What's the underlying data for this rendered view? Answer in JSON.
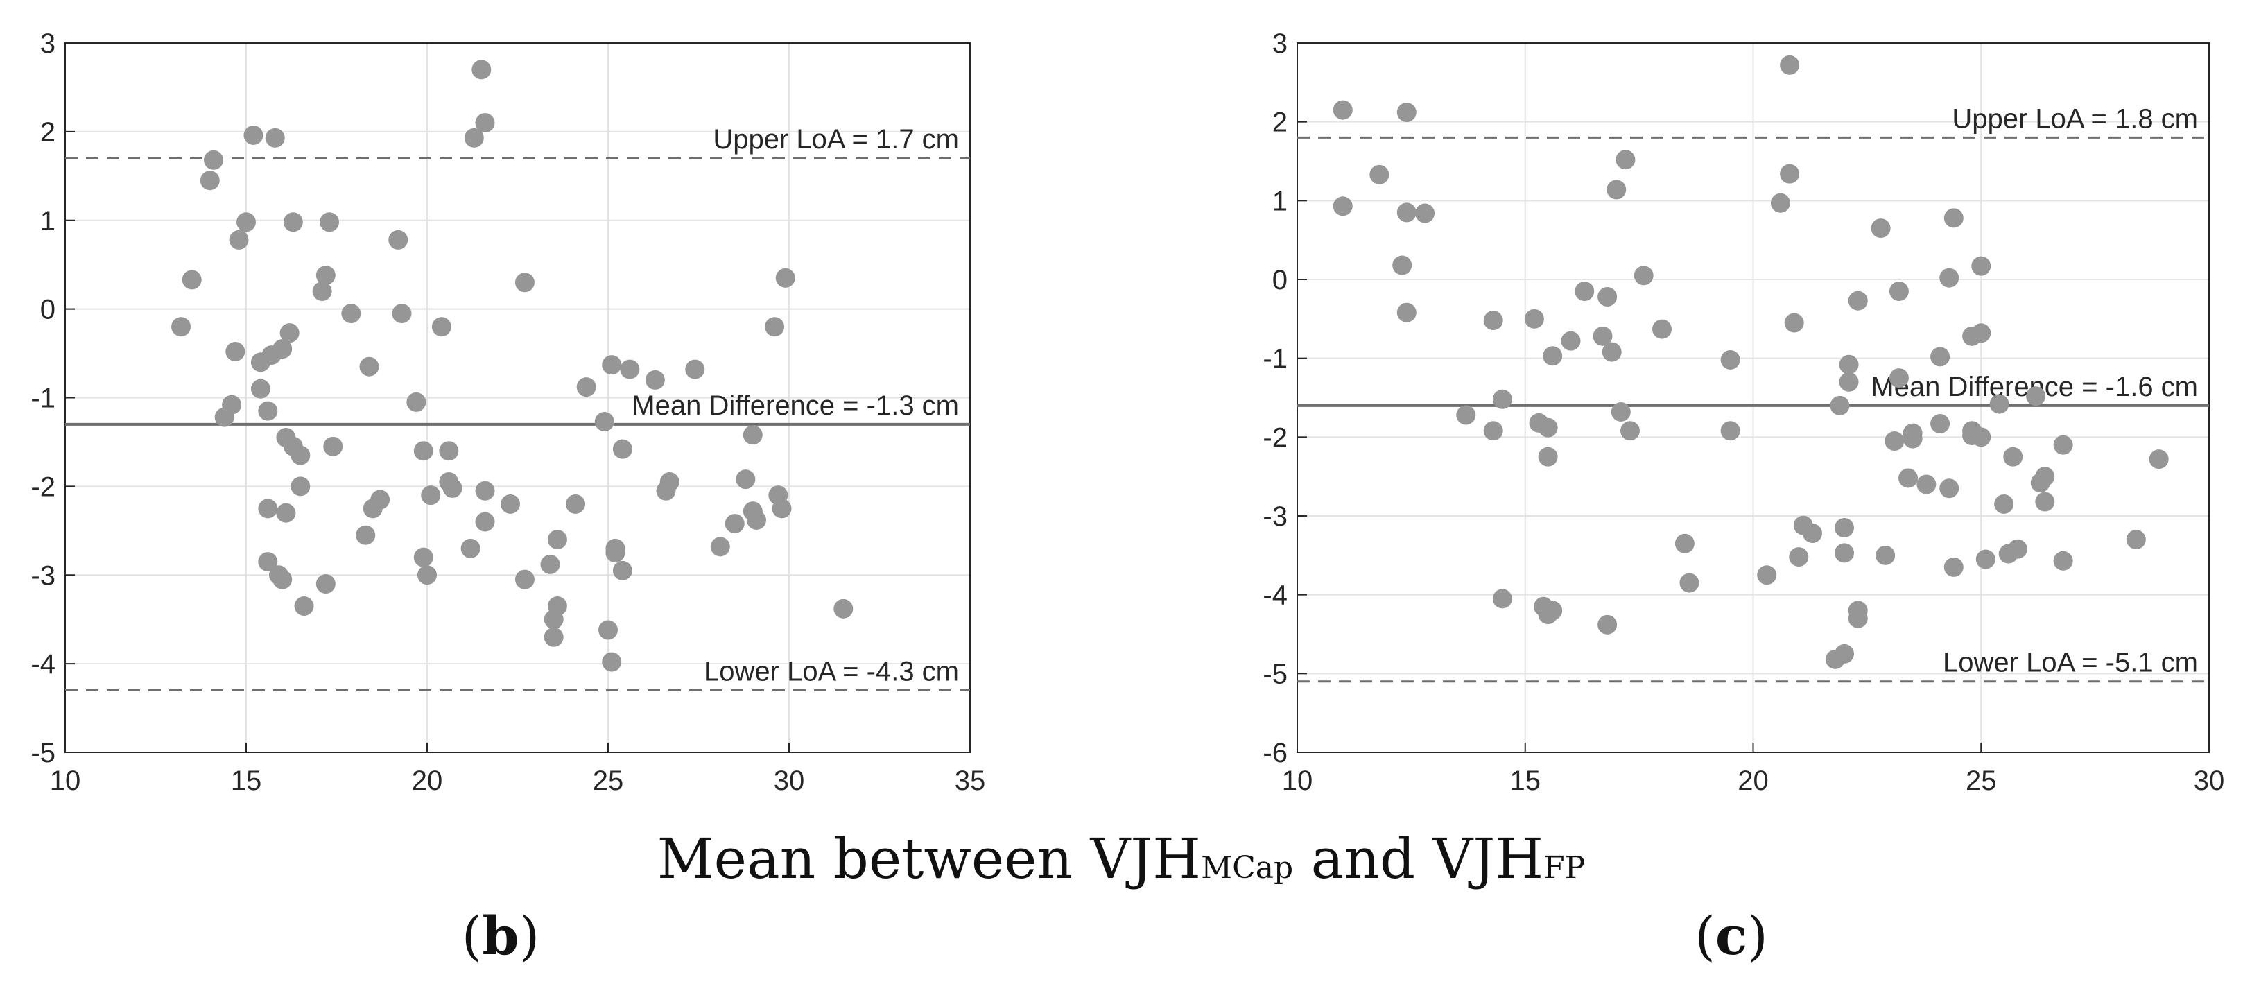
{
  "chart_data": [
    {
      "type": "scatter",
      "panel_label": "b",
      "xlim": [
        10,
        35
      ],
      "ylim": [
        -5,
        3
      ],
      "xticks": [
        10,
        15,
        20,
        25,
        30,
        35
      ],
      "yticks": [
        -5,
        -4,
        -3,
        -2,
        -1,
        0,
        1,
        2,
        3
      ],
      "grid": true,
      "point_color": "#969696",
      "reference_lines": [
        {
          "name": "upper-loa",
          "y": 1.7,
          "style": "dashed",
          "label": "Upper LoA = 1.7 cm"
        },
        {
          "name": "mean-difference",
          "y": -1.3,
          "style": "solid",
          "label": "Mean Difference = -1.3 cm"
        },
        {
          "name": "lower-loa",
          "y": -4.3,
          "style": "dashed",
          "label": "Lower LoA = -4.3 cm"
        }
      ],
      "points": [
        [
          13.2,
          -0.2
        ],
        [
          13.5,
          0.33
        ],
        [
          14.0,
          1.45
        ],
        [
          14.1,
          1.68
        ],
        [
          14.4,
          -1.22
        ],
        [
          14.6,
          -1.08
        ],
        [
          14.7,
          -0.48
        ],
        [
          14.8,
          0.78
        ],
        [
          15.0,
          0.98
        ],
        [
          15.2,
          1.96
        ],
        [
          15.4,
          -0.6
        ],
        [
          15.4,
          -0.9
        ],
        [
          15.6,
          -1.15
        ],
        [
          15.6,
          -2.25
        ],
        [
          15.6,
          -2.85
        ],
        [
          15.7,
          -0.52
        ],
        [
          15.8,
          1.93
        ],
        [
          15.9,
          -3.0
        ],
        [
          16.0,
          -0.45
        ],
        [
          16.0,
          -3.05
        ],
        [
          16.1,
          -1.45
        ],
        [
          16.1,
          -2.3
        ],
        [
          16.2,
          -0.27
        ],
        [
          16.3,
          -1.55
        ],
        [
          16.3,
          0.98
        ],
        [
          16.5,
          -2.0
        ],
        [
          16.5,
          -1.65
        ],
        [
          16.6,
          -3.35
        ],
        [
          17.1,
          0.2
        ],
        [
          17.2,
          0.38
        ],
        [
          17.2,
          -3.1
        ],
        [
          17.3,
          0.98
        ],
        [
          17.4,
          -1.55
        ],
        [
          17.9,
          -0.05
        ],
        [
          18.3,
          -2.55
        ],
        [
          18.4,
          -0.65
        ],
        [
          18.5,
          -2.25
        ],
        [
          18.7,
          -2.15
        ],
        [
          19.2,
          0.78
        ],
        [
          19.3,
          -0.05
        ],
        [
          19.7,
          -1.05
        ],
        [
          19.9,
          -1.6
        ],
        [
          19.9,
          -2.8
        ],
        [
          20.0,
          -3.0
        ],
        [
          20.1,
          -2.1
        ],
        [
          20.4,
          -0.2
        ],
        [
          20.6,
          -1.6
        ],
        [
          20.6,
          -1.95
        ],
        [
          20.7,
          -2.02
        ],
        [
          21.2,
          -2.7
        ],
        [
          21.3,
          1.93
        ],
        [
          21.5,
          2.7
        ],
        [
          21.6,
          2.1
        ],
        [
          21.6,
          -2.05
        ],
        [
          21.6,
          -2.4
        ],
        [
          22.3,
          -2.2
        ],
        [
          22.7,
          0.3
        ],
        [
          22.7,
          -3.05
        ],
        [
          23.4,
          -2.88
        ],
        [
          23.5,
          -3.5
        ],
        [
          23.5,
          -3.7
        ],
        [
          23.6,
          -3.35
        ],
        [
          23.6,
          -2.6
        ],
        [
          24.1,
          -2.2
        ],
        [
          24.4,
          -0.88
        ],
        [
          24.9,
          -1.27
        ],
        [
          25.0,
          -3.62
        ],
        [
          25.1,
          -0.63
        ],
        [
          25.1,
          -3.98
        ],
        [
          25.2,
          -2.7
        ],
        [
          25.2,
          -2.75
        ],
        [
          25.4,
          -1.58
        ],
        [
          25.4,
          -2.95
        ],
        [
          25.6,
          -0.68
        ],
        [
          26.3,
          -0.8
        ],
        [
          26.6,
          -2.05
        ],
        [
          26.7,
          -1.95
        ],
        [
          27.4,
          -0.68
        ],
        [
          28.1,
          -2.68
        ],
        [
          28.5,
          -2.42
        ],
        [
          28.8,
          -1.92
        ],
        [
          29.0,
          -1.42
        ],
        [
          29.0,
          -2.28
        ],
        [
          29.1,
          -2.38
        ],
        [
          29.6,
          -0.2
        ],
        [
          29.7,
          -2.1
        ],
        [
          29.8,
          -2.25
        ],
        [
          29.9,
          0.35
        ],
        [
          31.5,
          -3.38
        ]
      ]
    },
    {
      "type": "scatter",
      "panel_label": "c",
      "xlim": [
        10,
        30
      ],
      "ylim": [
        -6,
        3
      ],
      "xticks": [
        10,
        15,
        20,
        25,
        30
      ],
      "yticks": [
        -6,
        -5,
        -4,
        -3,
        -2,
        -1,
        0,
        1,
        2,
        3
      ],
      "grid": true,
      "point_color": "#969696",
      "reference_lines": [
        {
          "name": "upper-loa",
          "y": 1.8,
          "style": "dashed",
          "label": "Upper LoA = 1.8 cm"
        },
        {
          "name": "mean-difference",
          "y": -1.6,
          "style": "solid",
          "label": "Mean Difference = -1.6 cm"
        },
        {
          "name": "lower-loa",
          "y": -5.1,
          "style": "dashed",
          "label": "Lower LoA = -5.1 cm"
        }
      ],
      "points": [
        [
          11.0,
          2.15
        ],
        [
          11.0,
          0.93
        ],
        [
          11.8,
          1.33
        ],
        [
          12.4,
          2.12
        ],
        [
          12.4,
          0.85
        ],
        [
          12.3,
          0.18
        ],
        [
          12.4,
          -0.42
        ],
        [
          12.8,
          0.84
        ],
        [
          13.7,
          -1.72
        ],
        [
          14.3,
          -0.52
        ],
        [
          14.3,
          -1.92
        ],
        [
          14.5,
          -1.52
        ],
        [
          14.5,
          -4.05
        ],
        [
          15.2,
          -0.5
        ],
        [
          15.3,
          -1.82
        ],
        [
          15.5,
          -1.88
        ],
        [
          15.5,
          -2.25
        ],
        [
          15.6,
          -0.97
        ],
        [
          15.4,
          -4.15
        ],
        [
          15.5,
          -4.25
        ],
        [
          15.6,
          -4.2
        ],
        [
          16.0,
          -0.78
        ],
        [
          16.3,
          -0.15
        ],
        [
          16.7,
          -0.72
        ],
        [
          16.8,
          -0.22
        ],
        [
          16.8,
          -4.38
        ],
        [
          16.9,
          -0.92
        ],
        [
          17.0,
          1.14
        ],
        [
          17.1,
          -1.68
        ],
        [
          17.2,
          1.52
        ],
        [
          17.3,
          -1.92
        ],
        [
          17.6,
          0.05
        ],
        [
          18.0,
          -0.63
        ],
        [
          18.5,
          -3.35
        ],
        [
          18.6,
          -3.85
        ],
        [
          19.5,
          -1.02
        ],
        [
          19.5,
          -1.92
        ],
        [
          20.3,
          -3.75
        ],
        [
          20.6,
          0.97
        ],
        [
          20.8,
          2.72
        ],
        [
          20.8,
          1.34
        ],
        [
          20.9,
          -0.55
        ],
        [
          21.0,
          -3.52
        ],
        [
          21.1,
          -3.12
        ],
        [
          21.3,
          -3.22
        ],
        [
          21.8,
          -4.82
        ],
        [
          21.9,
          -1.6
        ],
        [
          22.0,
          -3.15
        ],
        [
          22.0,
          -3.47
        ],
        [
          22.0,
          -4.75
        ],
        [
          22.1,
          -1.08
        ],
        [
          22.1,
          -1.3
        ],
        [
          22.3,
          -0.27
        ],
        [
          22.3,
          -4.2
        ],
        [
          22.3,
          -4.3
        ],
        [
          22.8,
          0.65
        ],
        [
          22.9,
          -3.5
        ],
        [
          23.1,
          -2.05
        ],
        [
          23.2,
          -1.25
        ],
        [
          23.2,
          -0.15
        ],
        [
          23.4,
          -2.52
        ],
        [
          23.5,
          -1.95
        ],
        [
          23.5,
          -2.02
        ],
        [
          23.8,
          -2.6
        ],
        [
          24.1,
          -1.83
        ],
        [
          24.1,
          -0.98
        ],
        [
          24.3,
          0.02
        ],
        [
          24.3,
          -2.65
        ],
        [
          24.4,
          0.78
        ],
        [
          24.4,
          -3.65
        ],
        [
          24.8,
          -1.92
        ],
        [
          24.8,
          -1.98
        ],
        [
          24.8,
          -0.72
        ],
        [
          25.0,
          -2.0
        ],
        [
          25.0,
          0.17
        ],
        [
          25.0,
          -0.68
        ],
        [
          25.1,
          -3.55
        ],
        [
          25.4,
          -1.58
        ],
        [
          25.5,
          -2.85
        ],
        [
          25.6,
          -3.48
        ],
        [
          25.7,
          -2.25
        ],
        [
          25.8,
          -3.42
        ],
        [
          26.2,
          -1.48
        ],
        [
          26.3,
          -2.58
        ],
        [
          26.4,
          -2.5
        ],
        [
          26.4,
          -2.82
        ],
        [
          26.8,
          -2.1
        ],
        [
          26.8,
          -3.57
        ],
        [
          28.4,
          -3.3
        ],
        [
          28.9,
          -2.28
        ]
      ]
    }
  ],
  "shared_xlabel": {
    "main_1": "Mean between VJH",
    "sub_1": "MCap",
    "main_2": " and VJH",
    "sub_2": "FP"
  },
  "panel_labels": {
    "b": {
      "open": "(",
      "letter": "b",
      "close": ")"
    },
    "c": {
      "open": "(",
      "letter": "c",
      "close": ")"
    }
  }
}
